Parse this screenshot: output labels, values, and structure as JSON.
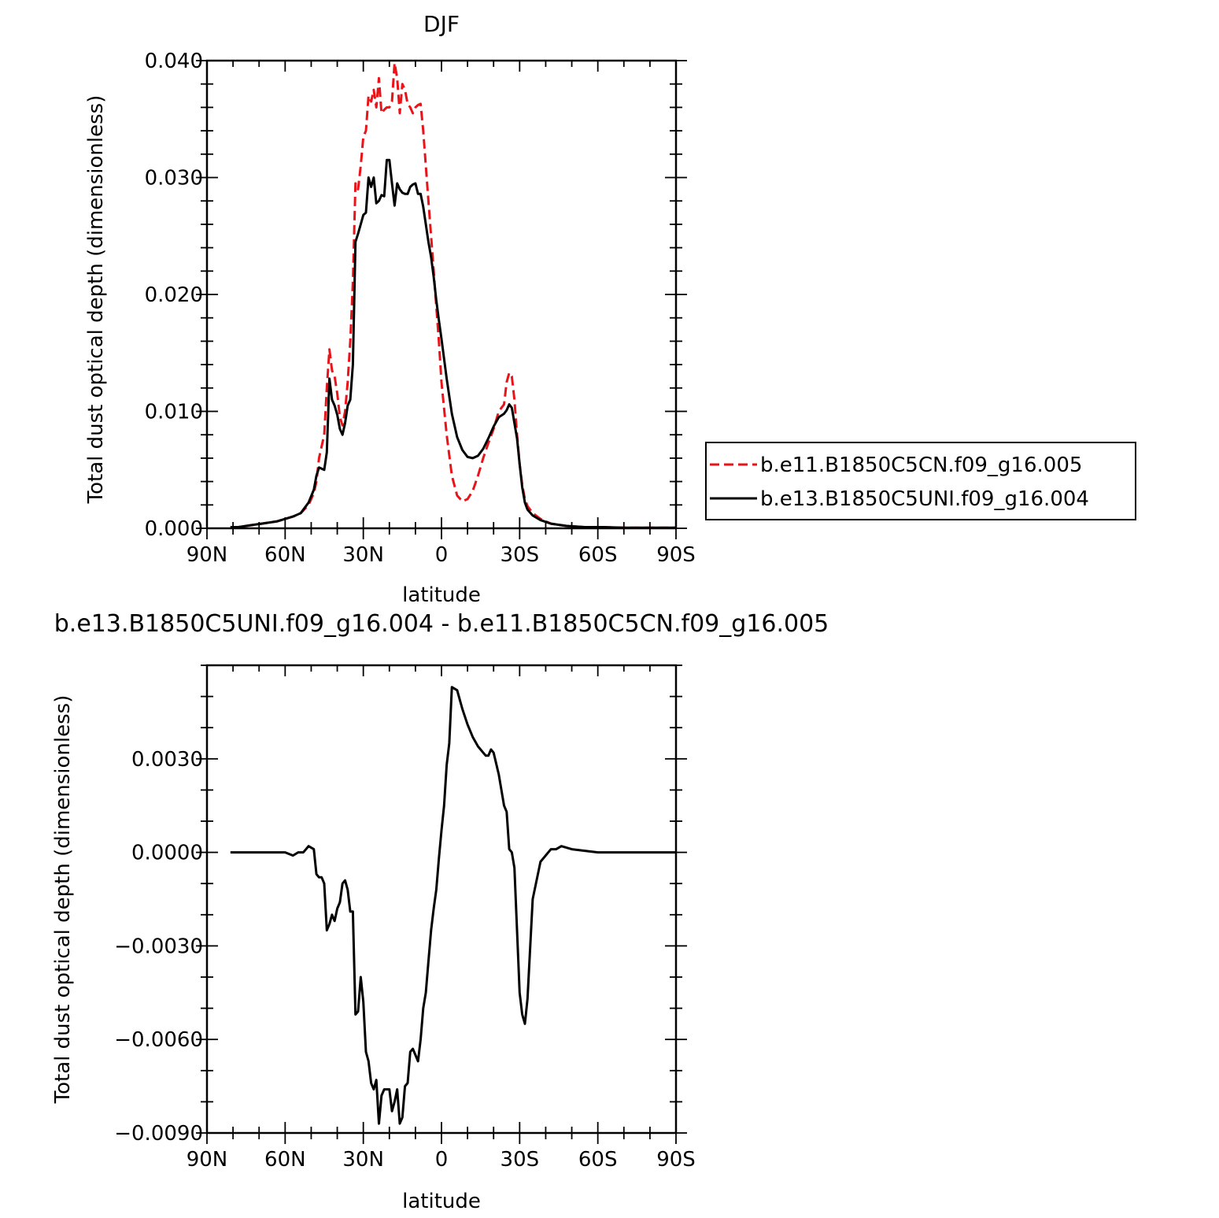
{
  "colors": {
    "series1": "#e8141a",
    "series2": "#000000"
  },
  "chart_data": [
    {
      "type": "line",
      "title": "DJF",
      "xlabel": "latitude",
      "ylabel": "Total dust optical depth (dimensionless)",
      "xlim": [
        90,
        -90
      ],
      "ylim": [
        0,
        0.04
      ],
      "x_ticks": [
        90,
        60,
        30,
        0,
        -30,
        -60,
        -90
      ],
      "x_tick_labels": [
        "90N",
        "60N",
        "30N",
        "0",
        "30S",
        "60S",
        "90S"
      ],
      "y_ticks": [
        0,
        0.01,
        0.02,
        0.03,
        0.04
      ],
      "y_tick_labels": [
        "0.000",
        "0.010",
        "0.020",
        "0.030",
        "0.040"
      ],
      "legend": {
        "placement": "right",
        "entries": [
          "b.e11.B1850C5CN.f09_g16.005",
          "b.e13.B1850C5UNI.f09_g16.004"
        ]
      },
      "series": [
        {
          "name": "b.e11.B1850C5CN.f09_g16.005",
          "style": "dashed",
          "x": [
            81,
            78,
            75,
            72,
            69,
            66,
            63,
            60,
            57,
            54,
            51,
            49,
            48,
            47,
            45,
            44,
            43,
            42,
            41,
            40,
            39,
            38,
            37,
            36,
            35,
            34,
            33,
            32,
            31,
            30,
            29,
            28,
            27,
            26,
            25,
            24,
            23,
            22,
            21,
            20,
            19,
            18,
            17,
            16,
            15,
            14,
            13,
            12,
            11,
            10,
            9,
            8,
            7,
            6,
            5,
            4,
            3,
            2,
            1,
            0,
            -2,
            -4,
            -6,
            -8,
            -10,
            -12,
            -14,
            -16,
            -18,
            -20,
            -22,
            -24,
            -25,
            -26,
            -27,
            -28,
            -29,
            -30,
            -31,
            -32,
            -33,
            -35,
            -38,
            -42,
            -48,
            -55,
            -62,
            -70,
            -80,
            -90
          ],
          "y": [
            0.0001,
            0.0001,
            0.0002,
            0.0003,
            0.0004,
            0.0005,
            0.0006,
            0.0008,
            0.001,
            0.0013,
            0.002,
            0.003,
            0.004,
            0.006,
            0.008,
            0.012,
            0.0153,
            0.0135,
            0.013,
            0.0115,
            0.0095,
            0.0088,
            0.01,
            0.0125,
            0.016,
            0.021,
            0.0295,
            0.029,
            0.031,
            0.0335,
            0.034,
            0.037,
            0.0365,
            0.0375,
            0.036,
            0.0385,
            0.0355,
            0.0358,
            0.036,
            0.036,
            0.0365,
            0.0398,
            0.0385,
            0.0355,
            0.038,
            0.0375,
            0.0363,
            0.036,
            0.0355,
            0.036,
            0.0362,
            0.0363,
            0.034,
            0.031,
            0.028,
            0.025,
            0.022,
            0.019,
            0.016,
            0.0125,
            0.008,
            0.0045,
            0.0028,
            0.0023,
            0.0025,
            0.0032,
            0.0045,
            0.006,
            0.0073,
            0.0085,
            0.01,
            0.0106,
            0.0125,
            0.0133,
            0.013,
            0.011,
            0.008,
            0.0055,
            0.0037,
            0.0025,
            0.0019,
            0.0013,
            0.0008,
            0.0004,
            0.0002,
            0.0001,
            0.0001,
            5e-05,
            5e-05,
            5e-05
          ]
        },
        {
          "name": "b.e13.B1850C5UNI.f09_g16.004",
          "style": "solid",
          "x": [
            81,
            78,
            75,
            72,
            69,
            66,
            63,
            60,
            57,
            54,
            51,
            49,
            48,
            47,
            45,
            44,
            43,
            42,
            41,
            40,
            39,
            38,
            37,
            36,
            35,
            34,
            33,
            32,
            31,
            30,
            29,
            28,
            27,
            26,
            25,
            24,
            23,
            22,
            21,
            20,
            19,
            18,
            17,
            16,
            15,
            14,
            13,
            12,
            11,
            10,
            9,
            8,
            7,
            6,
            5,
            4,
            3,
            2,
            1,
            0,
            -2,
            -4,
            -6,
            -8,
            -10,
            -12,
            -14,
            -16,
            -18,
            -20,
            -22,
            -24,
            -25,
            -26,
            -27,
            -28,
            -29,
            -30,
            -31,
            -32,
            -33,
            -35,
            -38,
            -42,
            -48,
            -55,
            -62,
            -70,
            -80,
            -90
          ],
          "y": [
            0.0001,
            0.0001,
            0.0002,
            0.0003,
            0.0004,
            0.0005,
            0.0006,
            0.0008,
            0.001,
            0.0013,
            0.0022,
            0.0033,
            0.0045,
            0.0052,
            0.005,
            0.0065,
            0.0128,
            0.011,
            0.0105,
            0.0097,
            0.0085,
            0.008,
            0.009,
            0.0105,
            0.011,
            0.014,
            0.0245,
            0.0252,
            0.026,
            0.0268,
            0.027,
            0.03,
            0.0292,
            0.03,
            0.0278,
            0.028,
            0.0285,
            0.0284,
            0.0315,
            0.0315,
            0.0295,
            0.0276,
            0.0295,
            0.029,
            0.0287,
            0.0286,
            0.0286,
            0.0292,
            0.0294,
            0.0295,
            0.0286,
            0.0286,
            0.0275,
            0.026,
            0.0245,
            0.0232,
            0.0215,
            0.0195,
            0.0178,
            0.0162,
            0.0128,
            0.0098,
            0.0078,
            0.0067,
            0.0061,
            0.006,
            0.0062,
            0.0068,
            0.0077,
            0.0087,
            0.0095,
            0.0098,
            0.0101,
            0.0106,
            0.0103,
            0.009,
            0.0077,
            0.0055,
            0.0035,
            0.0022,
            0.0016,
            0.0011,
            0.0007,
            0.0004,
            0.0002,
            0.0001,
            0.0001,
            5e-05,
            5e-05,
            5e-05
          ]
        }
      ]
    },
    {
      "type": "line",
      "title": "b.e13.B1850C5UNI.f09_g16.004 - b.e11.B1850C5CN.f09_g16.005",
      "xlabel": "latitude",
      "ylabel": "Total dust optical depth (dimensionless)",
      "xlim": [
        90,
        -90
      ],
      "ylim": [
        -0.009,
        0.006
      ],
      "x_ticks": [
        90,
        60,
        30,
        0,
        -30,
        -60,
        -90
      ],
      "x_tick_labels": [
        "90N",
        "60N",
        "30N",
        "0",
        "30S",
        "60S",
        "90S"
      ],
      "y_ticks": [
        -0.009,
        -0.006,
        -0.003,
        0,
        0.003
      ],
      "y_tick_labels": [
        "−0.0090",
        "−0.0060",
        "−0.0030",
        "0.0000",
        "0.0030"
      ],
      "series": [
        {
          "name": "b.e13.B1850C5UNI.f09_g16.004 - b.e11.B1850C5CN.f09_g16.005",
          "style": "solid",
          "x": [
            81,
            78,
            75,
            72,
            69,
            66,
            63,
            60,
            57,
            55,
            53,
            51,
            49,
            48,
            47,
            46,
            45,
            44,
            43,
            42,
            41,
            40,
            39,
            38,
            37,
            36,
            35,
            34,
            33,
            32,
            31,
            30,
            29,
            28,
            27,
            26,
            25,
            24,
            23,
            22,
            21,
            20,
            19,
            18,
            17,
            16,
            15,
            14,
            13,
            12,
            11,
            10,
            9,
            8,
            7,
            6,
            5,
            4,
            3,
            2,
            1,
            0,
            -1,
            -2,
            -3,
            -4,
            -6,
            -8,
            -10,
            -12,
            -14,
            -16,
            -17,
            -18,
            -19,
            -20,
            -22,
            -24,
            -25,
            -26,
            -27,
            -28,
            -29,
            -30,
            -31,
            -32,
            -33,
            -35,
            -38,
            -42,
            -44,
            -46,
            -50,
            -60,
            -70,
            -90
          ],
          "y": [
            0.0,
            0.0,
            0.0,
            0.0,
            0.0,
            0.0,
            0.0,
            0.0,
            -0.0001,
            0.0,
            0.0,
            0.0002,
            0.0001,
            -0.0007,
            -0.0008,
            -0.0008,
            -0.001,
            -0.0025,
            -0.0023,
            -0.002,
            -0.0022,
            -0.0018,
            -0.0016,
            -0.001,
            -0.0009,
            -0.0012,
            -0.0019,
            -0.0019,
            -0.0052,
            -0.0051,
            -0.004,
            -0.0048,
            -0.0064,
            -0.0067,
            -0.0074,
            -0.0076,
            -0.0073,
            -0.0087,
            -0.0078,
            -0.0076,
            -0.0076,
            -0.0076,
            -0.0083,
            -0.008,
            -0.0076,
            -0.0087,
            -0.0085,
            -0.0075,
            -0.0074,
            -0.0064,
            -0.0063,
            -0.0065,
            -0.0067,
            -0.006,
            -0.005,
            -0.0045,
            -0.0035,
            -0.0025,
            -0.0018,
            -0.0012,
            -0.0002,
            0.0007,
            0.0015,
            0.0028,
            0.0035,
            0.0053,
            0.0052,
            0.0046,
            0.0041,
            0.0037,
            0.0034,
            0.0032,
            0.0031,
            0.0031,
            0.0033,
            0.0032,
            0.0025,
            0.0015,
            0.0013,
            0.0001,
            0.0,
            -0.0005,
            -0.0025,
            -0.0045,
            -0.0052,
            -0.0055,
            -0.0047,
            -0.0015,
            -0.0003,
            0.0001,
            0.0001,
            0.0002,
            0.0001,
            0.0,
            0.0,
            0.0
          ]
        }
      ]
    }
  ]
}
